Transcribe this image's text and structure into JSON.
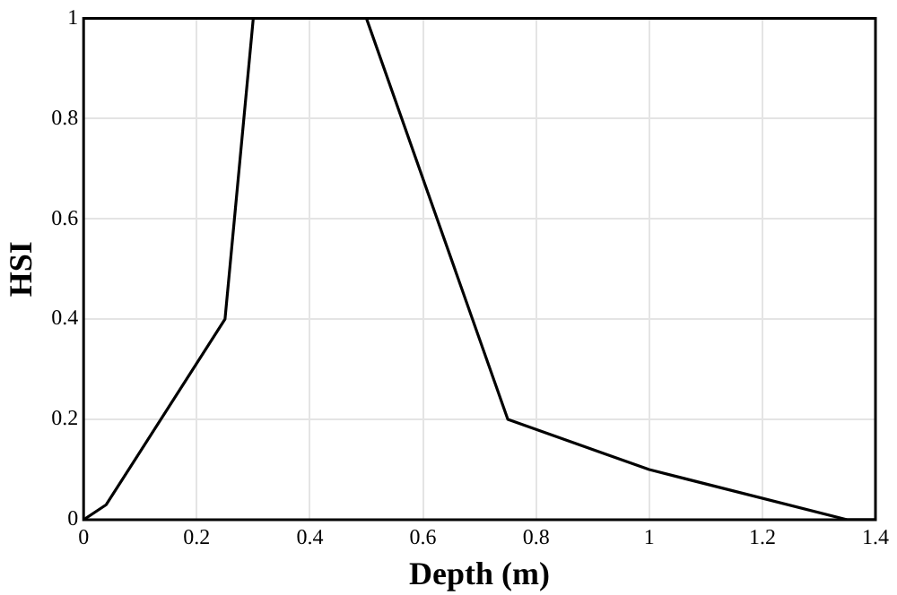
{
  "chart_data": {
    "type": "line",
    "xlabel": "Depth (m)",
    "ylabel": "HSI",
    "x": [
      0,
      0.04,
      0.25,
      0.3,
      0.5,
      0.75,
      1,
      1.35,
      1.4
    ],
    "series": [
      {
        "color": "#000000",
        "values": [
          0,
          0.03,
          0.4,
          1,
          1,
          0.2,
          0.1,
          0,
          0
        ]
      }
    ],
    "xlim": [
      0,
      1.4
    ],
    "xticks": [
      0,
      0.2,
      0.4,
      0.6,
      0.8,
      1,
      1.2,
      1.4
    ],
    "ylim": [
      0,
      1
    ],
    "yticks": [
      0,
      0.2,
      0.4,
      0.6,
      0.8,
      1
    ],
    "grid": true,
    "legend": false,
    "marker": "none",
    "line_style": "solid"
  }
}
